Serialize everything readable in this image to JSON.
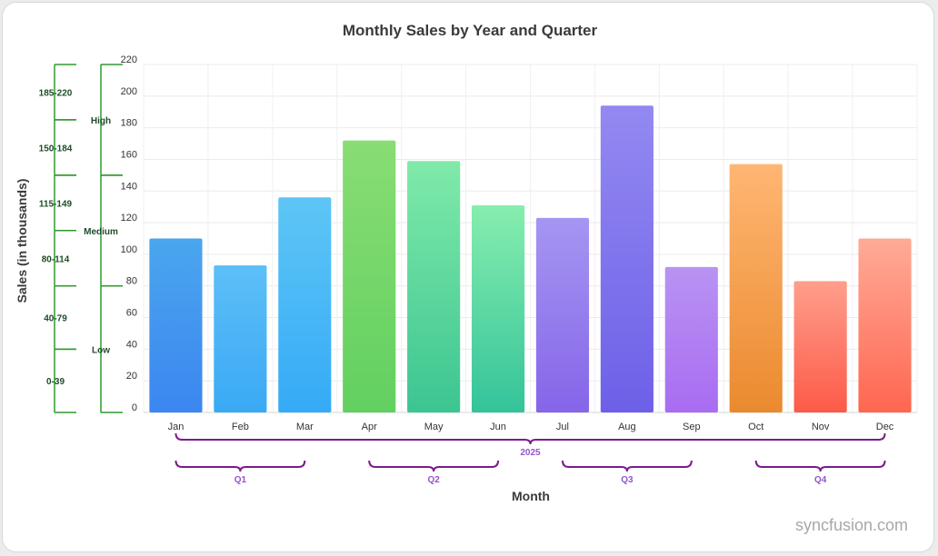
{
  "chart_data": {
    "type": "bar",
    "title": "Monthly Sales by Year and Quarter",
    "xlabel": "Month",
    "ylabel": "Sales (in thousands)",
    "ylim": [
      0,
      220
    ],
    "yticks": [
      0,
      20,
      40,
      60,
      80,
      100,
      120,
      140,
      160,
      180,
      200,
      220
    ],
    "grid": true,
    "categories": [
      "Jan",
      "Feb",
      "Mar",
      "Apr",
      "May",
      "Jun",
      "Jul",
      "Aug",
      "Sep",
      "Oct",
      "Nov",
      "Dec"
    ],
    "values": [
      110,
      93,
      136,
      172,
      159,
      131,
      123,
      194,
      92,
      157,
      83,
      110
    ],
    "bar_colors": [
      [
        "#4aa6ee",
        "#3b86f0"
      ],
      [
        "#5dbff7",
        "#3aa9f5"
      ],
      [
        "#5ec6f6",
        "#35aaf6"
      ],
      [
        "#88dd74",
        "#62d060"
      ],
      [
        "#80eaa9",
        "#3cc592"
      ],
      [
        "#86eeae",
        "#34c39a"
      ],
      [
        "#a696f2",
        "#8565e9"
      ],
      [
        "#9389f1",
        "#6d60e8"
      ],
      [
        "#b993f3",
        "#a86cf2"
      ],
      [
        "#ffb673",
        "#ea8a2e"
      ],
      [
        "#ff9e8c",
        "#fd5a48"
      ],
      [
        "#ffab97",
        "#ff6650"
      ]
    ],
    "x_groups": {
      "year": {
        "label": "2025",
        "from": "Jan",
        "to": "Dec"
      },
      "quarters": [
        {
          "label": "Q1",
          "from": "Jan",
          "to": "Mar"
        },
        {
          "label": "Q2",
          "from": "Apr",
          "to": "Jun"
        },
        {
          "label": "Q3",
          "from": "Jul",
          "to": "Sep"
        },
        {
          "label": "Q4",
          "from": "Oct",
          "to": "Dec"
        }
      ]
    },
    "y_ranges": [
      {
        "label": "0-39",
        "from": 0,
        "to": 39
      },
      {
        "label": "40-79",
        "from": 40,
        "to": 79
      },
      {
        "label": "80-114",
        "from": 80,
        "to": 114
      },
      {
        "label": "115-149",
        "from": 115,
        "to": 149
      },
      {
        "label": "150-184",
        "from": 150,
        "to": 184
      },
      {
        "label": "185-220",
        "from": 185,
        "to": 220
      }
    ],
    "y_levels": [
      {
        "label": "Low",
        "from": 0,
        "to": 79
      },
      {
        "label": "Medium",
        "from": 80,
        "to": 149
      },
      {
        "label": "High",
        "from": 150,
        "to": 220
      }
    ],
    "group_bracket_color": "#7b1b8a",
    "range_bracket_color": "#2e9a2e"
  },
  "watermark": "syncfusion.com"
}
